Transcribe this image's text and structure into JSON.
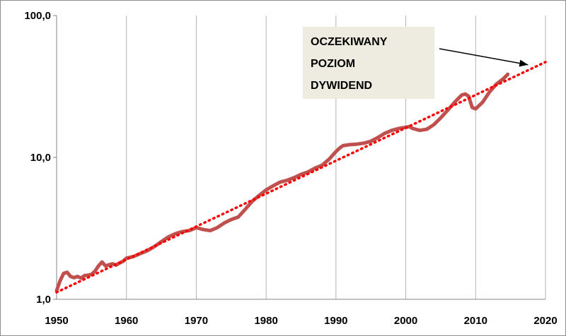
{
  "chart_data": {
    "type": "line",
    "y_scale": "log",
    "ylim": [
      1,
      100
    ],
    "xlim": [
      1950,
      2020
    ],
    "x_ticks": [
      "1950",
      "1960",
      "1970",
      "1980",
      "1990",
      "2000",
      "2010",
      "2020"
    ],
    "y_ticks": [
      "1,0",
      "10,0",
      "100,0"
    ],
    "grid": "vertical-gridlines",
    "colors": {
      "series": "#c0504d",
      "trend": "#ff0000",
      "grid": "#b3b3b3",
      "annotation_bg": "#eeece1"
    },
    "series": [
      {
        "style": "solid",
        "x": [
          1950.0,
          1950.5,
          1951.0,
          1951.5,
          1952.0,
          1952.5,
          1953.0,
          1953.5,
          1954.0,
          1954.5,
          1955.0,
          1955.5,
          1956.0,
          1956.5,
          1957.0,
          1957.5,
          1958.0,
          1958.5,
          1959.0,
          1959.5,
          1960.0,
          1961.0,
          1962.0,
          1963.0,
          1964.0,
          1965.0,
          1966.0,
          1967.0,
          1968.0,
          1969.0,
          1970.0,
          1971.0,
          1972.0,
          1973.0,
          1974.0,
          1975.0,
          1976.0,
          1977.0,
          1978.0,
          1979.0,
          1980.0,
          1981.0,
          1982.0,
          1983.0,
          1984.0,
          1985.0,
          1986.0,
          1987.0,
          1988.0,
          1989.0,
          1990.0,
          1990.5,
          1991.0,
          1992.0,
          1993.0,
          1994.0,
          1995.0,
          1996.0,
          1997.0,
          1998.0,
          1999.0,
          2000.0,
          2000.5,
          2001.0,
          2002.0,
          2003.0,
          2004.0,
          2005.0,
          2006.0,
          2007.0,
          2008.0,
          2008.5,
          2009.0,
          2009.5,
          2010.0,
          2011.0,
          2012.0,
          2013.0,
          2014.0,
          2014.6
        ],
        "y": [
          1.15,
          1.35,
          1.52,
          1.55,
          1.45,
          1.42,
          1.45,
          1.41,
          1.47,
          1.48,
          1.5,
          1.58,
          1.72,
          1.83,
          1.72,
          1.75,
          1.78,
          1.74,
          1.8,
          1.85,
          1.95,
          2.0,
          2.1,
          2.2,
          2.35,
          2.55,
          2.75,
          2.9,
          3.0,
          3.05,
          3.2,
          3.1,
          3.05,
          3.2,
          3.45,
          3.65,
          3.8,
          4.3,
          4.9,
          5.4,
          5.9,
          6.3,
          6.7,
          6.9,
          7.2,
          7.6,
          7.9,
          8.4,
          8.8,
          9.7,
          11.0,
          11.6,
          12.1,
          12.3,
          12.4,
          12.6,
          13.0,
          13.8,
          14.8,
          15.5,
          16.0,
          16.3,
          16.5,
          16.0,
          15.5,
          15.8,
          17.0,
          19.0,
          21.5,
          24.5,
          27.5,
          28.0,
          27.0,
          22.5,
          22.0,
          24.5,
          29.0,
          33.0,
          36.0,
          38.5
        ]
      },
      {
        "style": "dotted",
        "x": [
          1950,
          2020
        ],
        "y": [
          1.12,
          47.0
        ]
      }
    ],
    "annotations": [
      {
        "lines": [
          "OCZEKIWANY",
          "POZIOM",
          "DYWIDEND"
        ],
        "arrow_to": [
          2017.5,
          45.0
        ]
      }
    ]
  }
}
